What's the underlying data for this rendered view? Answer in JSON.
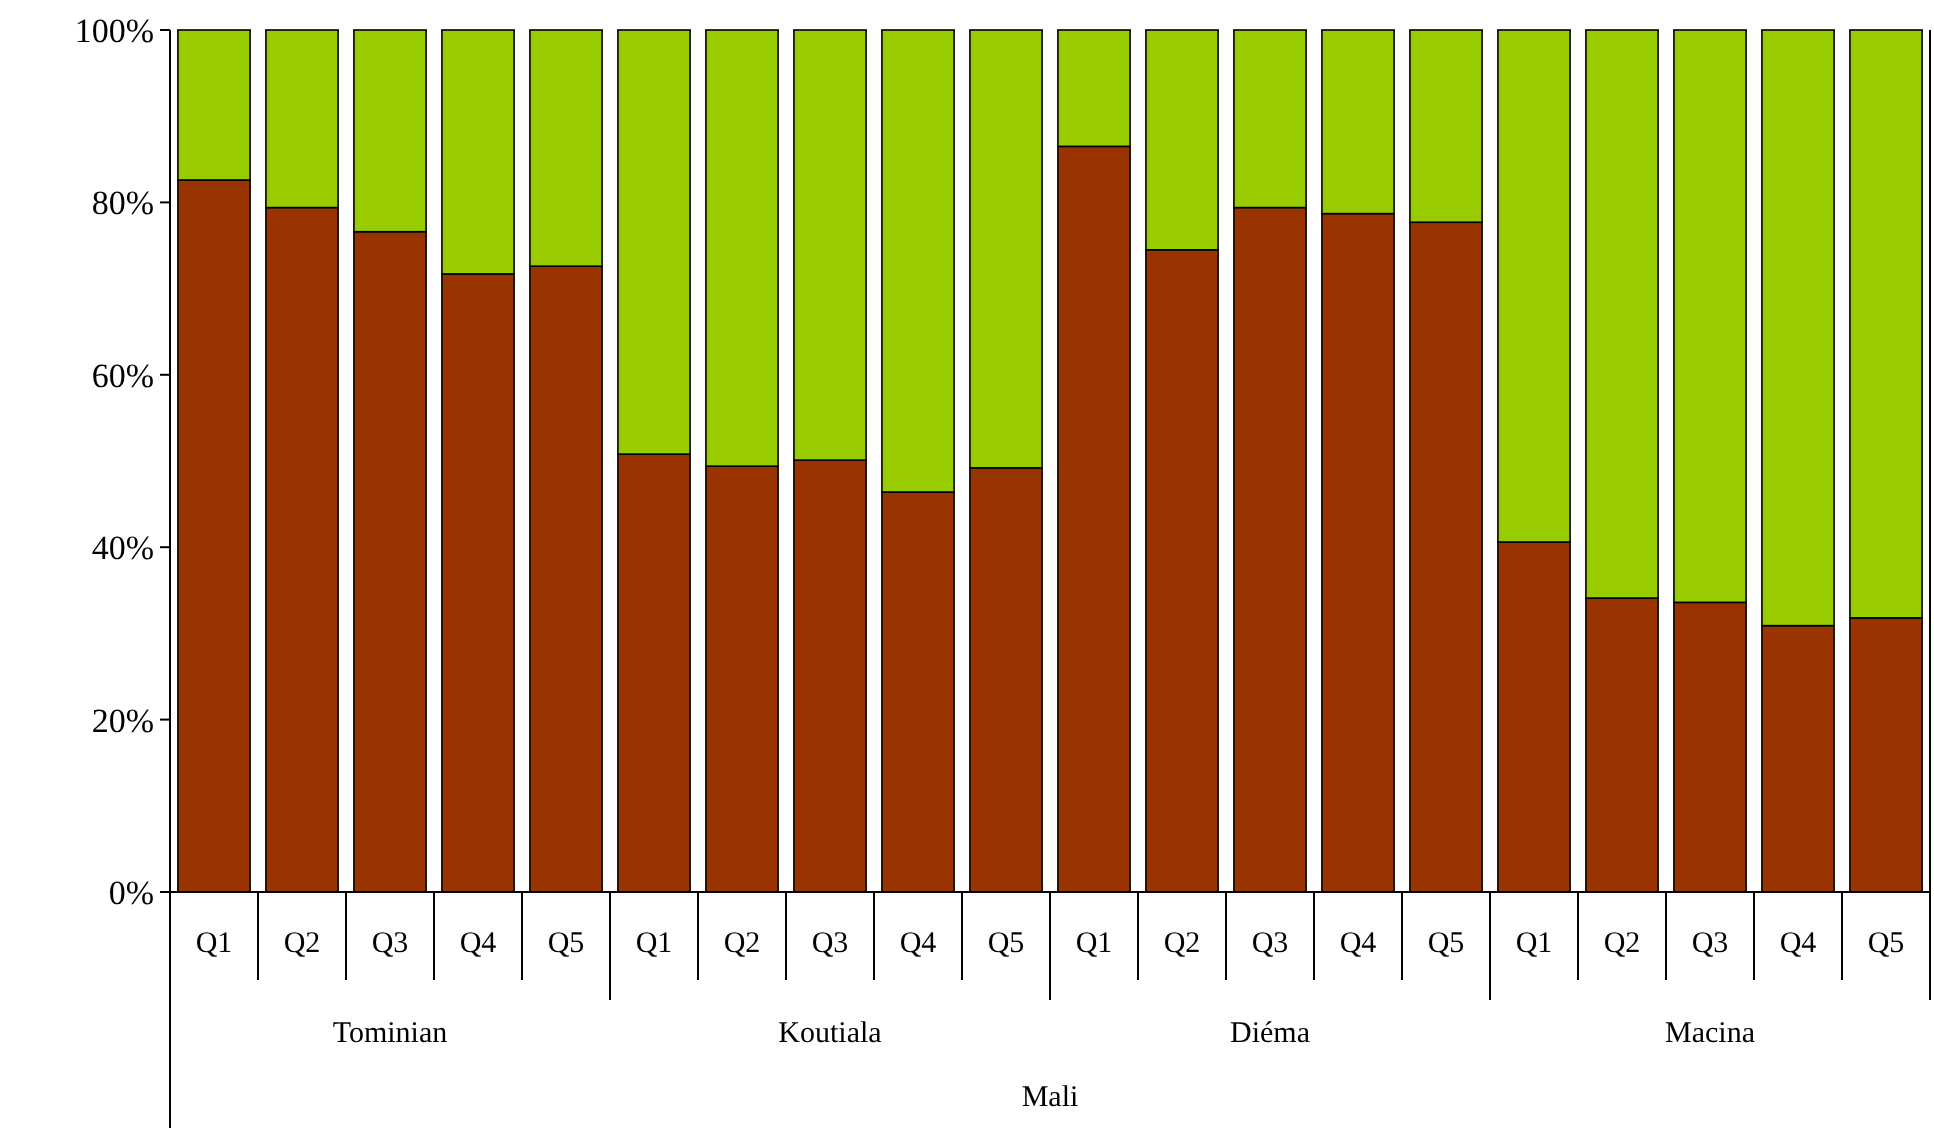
{
  "chart_data": {
    "type": "bar",
    "stacked": true,
    "categories": [
      "Q1",
      "Q2",
      "Q3",
      "Q4",
      "Q5",
      "Q1",
      "Q2",
      "Q3",
      "Q4",
      "Q5",
      "Q1",
      "Q2",
      "Q3",
      "Q4",
      "Q5",
      "Q1",
      "Q2",
      "Q3",
      "Q4",
      "Q5"
    ],
    "series": [
      {
        "color": "#993300",
        "values": [
          82.6,
          79.4,
          76.6,
          71.7,
          72.6,
          50.8,
          49.4,
          50.1,
          46.4,
          49.2,
          86.5,
          74.5,
          79.4,
          78.7,
          77.7,
          40.6,
          34.1,
          33.6,
          30.9,
          31.8
        ]
      },
      {
        "color": "#99cc00",
        "values": [
          17.4,
          20.6,
          23.4,
          28.3,
          27.4,
          49.2,
          50.6,
          49.9,
          53.6,
          50.8,
          13.5,
          25.5,
          20.6,
          21.3,
          22.3,
          59.4,
          65.9,
          66.4,
          69.1,
          68.2
        ]
      }
    ],
    "ylim": [
      0,
      100
    ],
    "yticks": [
      {
        "value": 0,
        "label": "0%"
      },
      {
        "value": 20,
        "label": "20%"
      },
      {
        "value": 40,
        "label": "40%"
      },
      {
        "value": 60,
        "label": "60%"
      },
      {
        "value": 80,
        "label": "80%"
      },
      {
        "value": 100,
        "label": "100%"
      }
    ],
    "annotations": [
      "Tominian",
      "Koutiala",
      "Diéma",
      "Macina",
      "Mali"
    ],
    "grid": false
  }
}
